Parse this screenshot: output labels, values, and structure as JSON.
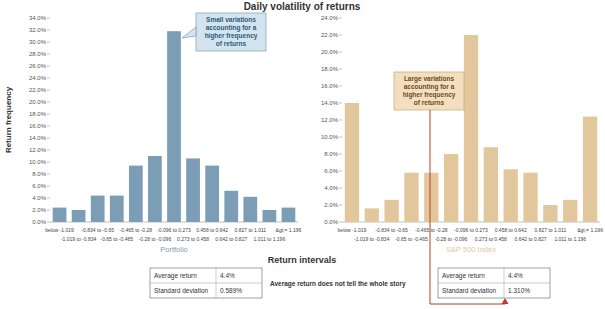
{
  "chart_data": [
    {
      "type": "bar",
      "title": "Daily volatility of returns",
      "y_label": "Return frequency",
      "x_label": "Return intervals",
      "categories": [
        "below -1.019",
        "-1.019 to -0.834",
        "-0.834 to -0.65",
        "-0.65 to -0.465",
        "-0.465 to -0.28",
        "-0.28 to -0.096",
        "-0.096 to 0.273",
        "0.273 to 0.458",
        "0.458 to 0.642",
        "0.642 to 0.827",
        "0.827 to 1.011",
        "1.011 to 1.196",
        "&gt;= 1.196"
      ],
      "series": [
        {
          "name": "Portfolio",
          "color": "#7b9db5",
          "values": [
            2.4,
            2.0,
            4.4,
            4.4,
            9.4,
            11.0,
            31.8,
            10.6,
            9.4,
            5.2,
            4.2,
            2.0,
            2.4
          ]
        }
      ],
      "ylim": [
        0,
        34
      ],
      "yticks": [
        {
          "value": 0,
          "label": "0.0%"
        },
        {
          "value": 2,
          "label": "2.0%"
        },
        {
          "value": 4,
          "label": "4.0%"
        },
        {
          "value": 6,
          "label": "6.0%"
        },
        {
          "value": 8,
          "label": "8.0%"
        },
        {
          "value": 10,
          "label": "10.0%"
        },
        {
          "value": 12,
          "label": "12.0%"
        },
        {
          "value": 14,
          "label": "14.0%"
        },
        {
          "value": 16,
          "label": "16.0%"
        },
        {
          "value": 18,
          "label": "18.0%"
        },
        {
          "value": 20,
          "label": "20.0%"
        },
        {
          "value": 22,
          "label": "22.0%"
        },
        {
          "value": 24,
          "label": "24.0%"
        },
        {
          "value": 26,
          "label": "26.0%"
        },
        {
          "value": 28,
          "label": "28.0%"
        },
        {
          "value": 30,
          "label": "30.0%"
        },
        {
          "value": 32,
          "label": "32.0%"
        },
        {
          "value": 34,
          "label": "34.0%"
        }
      ],
      "grid": false,
      "annotations": [
        "Small variations accounting for a higher frequency of returns",
        "Average return does not tell the whole story"
      ],
      "stats": [
        {
          "label": "Average return",
          "value": "4.4%"
        },
        {
          "label": "Standard deviation",
          "value": "0.589%"
        }
      ]
    },
    {
      "type": "bar",
      "categories": [
        "below -1.019",
        "-1.019 to -0.834",
        "-0.834 to -0.65",
        "-0.65 to -0.465",
        "-0.465 to -0.28",
        "-0.28 to -0.096",
        "-0.096 to 0.273",
        "0.273 to 0.458",
        "0.458 to 0.642",
        "0.642 to 0.827",
        "0.827 to 1.011",
        "1.011 to 1.196",
        "&gt;= 1.196"
      ],
      "series": [
        {
          "name": "S&P 500 Index",
          "color": "#e3c79c",
          "values": [
            14.0,
            1.6,
            2.6,
            5.8,
            5.8,
            8.0,
            22.0,
            8.8,
            6.2,
            5.8,
            2.0,
            2.6,
            12.4
          ]
        }
      ],
      "ylim": [
        0,
        24
      ],
      "yticks": [
        {
          "value": 0,
          "label": "0.0%"
        },
        {
          "value": 2,
          "label": "2.0%"
        },
        {
          "value": 4,
          "label": "4.0%"
        },
        {
          "value": 6,
          "label": "6.0%"
        },
        {
          "value": 8,
          "label": "8.0%"
        },
        {
          "value": 10,
          "label": "10.0%"
        },
        {
          "value": 12,
          "label": "12.0%"
        },
        {
          "value": 14,
          "label": "14.0%"
        },
        {
          "value": 16,
          "label": "16.0%"
        },
        {
          "value": 18,
          "label": "18.0%"
        },
        {
          "value": 20,
          "label": "20.0%"
        },
        {
          "value": 22,
          "label": "22.0%"
        },
        {
          "value": 24,
          "label": "24.0%"
        }
      ],
      "grid": false,
      "annotations": [
        "Large variations accounting for a higher frequency of returns"
      ],
      "stats": [
        {
          "label": "Average return",
          "value": "4.4%"
        },
        {
          "label": "Standard deviation",
          "value": "1.310%"
        }
      ]
    }
  ]
}
